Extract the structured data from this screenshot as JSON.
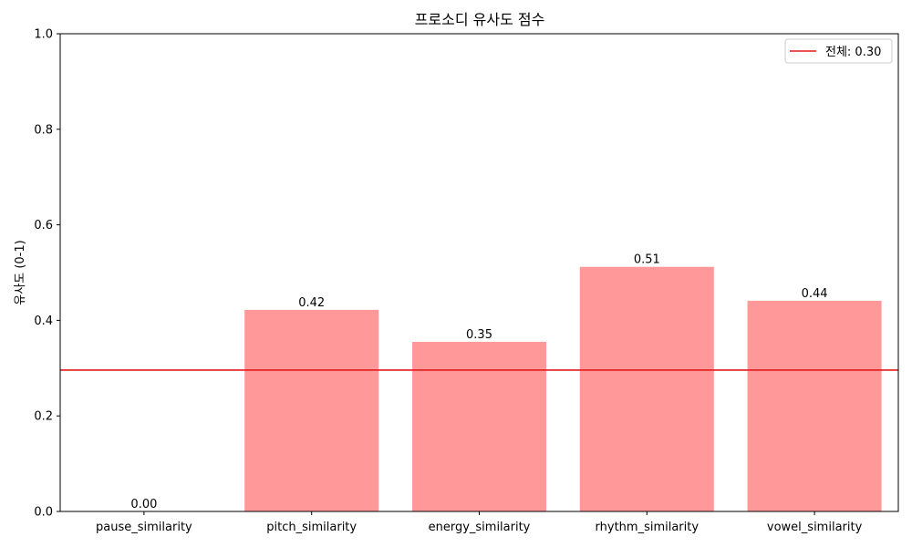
{
  "chart_data": {
    "type": "bar",
    "title": "프로소디 유사도 점수",
    "xlabel": "",
    "ylabel": "유사도 (0-1)",
    "categories": [
      "pause_similarity",
      "pitch_similarity",
      "energy_similarity",
      "rhythm_similarity",
      "vowel_similarity"
    ],
    "values": [
      0.0,
      0.422,
      0.355,
      0.512,
      0.441
    ],
    "value_labels": [
      "0.00",
      "0.42",
      "0.35",
      "0.51",
      "0.44"
    ],
    "ylim": [
      0,
      1.0
    ],
    "yticks": [
      0.0,
      0.2,
      0.4,
      0.6,
      0.8,
      1.0
    ],
    "ytick_labels": [
      "0.0",
      "0.2",
      "0.4",
      "0.6",
      "0.8",
      "1.0"
    ],
    "bar_color": "#ff9999",
    "reference_line": {
      "value": 0.296,
      "color": "#e31a1c",
      "label": "전체: 0.30"
    },
    "legend_position": "top-right",
    "grid": false
  }
}
